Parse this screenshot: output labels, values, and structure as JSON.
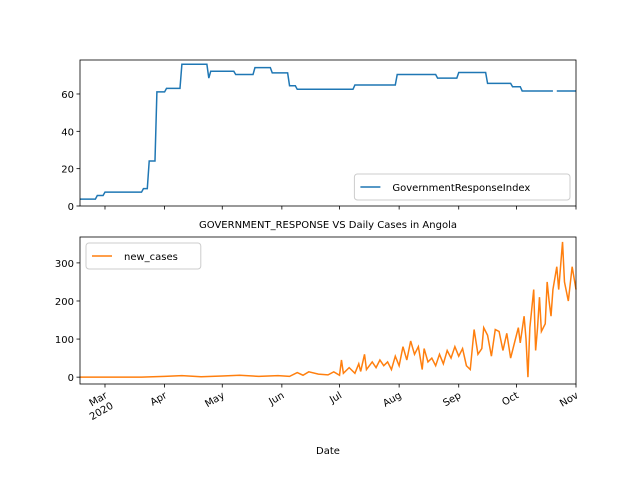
{
  "chart_data": [
    {
      "type": "line",
      "xlim": [
        "2020-02-17",
        "2020-11-01"
      ],
      "ylim": [
        0,
        78.2
      ],
      "yticks": [
        0,
        20,
        40,
        60
      ],
      "legend": "lower right",
      "xticks": [
        "2020-03-01",
        "2020-04-01",
        "2020-05-01",
        "2020-06-01",
        "2020-07-01",
        "2020-08-01",
        "2020-09-01",
        "2020-10-01",
        "2020-11-01"
      ],
      "x": [
        "2020-02-17",
        "2020-02-25",
        "2020-02-26",
        "2020-02-29",
        "2020-03-01",
        "2020-03-20",
        "2020-03-21",
        "2020-03-23",
        "2020-03-24",
        "2020-03-27",
        "2020-03-28",
        "2020-04-01",
        "2020-04-02",
        "2020-04-09",
        "2020-04-10",
        "2020-04-23",
        "2020-04-24",
        "2020-04-25",
        "2020-05-07",
        "2020-05-08",
        "2020-05-17",
        "2020-05-18",
        "2020-05-26",
        "2020-05-27",
        "2020-06-04",
        "2020-06-05",
        "2020-06-08",
        "2020-06-09",
        "2020-07-08",
        "2020-07-09",
        "2020-07-30",
        "2020-07-31",
        "2020-08-20",
        "2020-08-21",
        "2020-08-31",
        "2020-09-01",
        "2020-09-15",
        "2020-09-16",
        "2020-09-28",
        "2020-09-29",
        "2020-10-03",
        "2020-10-04",
        "2020-10-20",
        "2020-10-21",
        "2020-10-22",
        "2020-11-01"
      ],
      "series": [
        {
          "name": "GovernmentResponseIndex",
          "color": "#1f77b4",
          "values": [
            3.7,
            3.7,
            5.6,
            5.6,
            7.4,
            7.4,
            9.3,
            9.3,
            24.1,
            24.1,
            61.1,
            61.1,
            63.0,
            63.0,
            75.9,
            75.9,
            68.5,
            72.2,
            72.2,
            70.4,
            70.4,
            74.1,
            74.1,
            71.3,
            71.3,
            64.4,
            64.4,
            62.5,
            62.5,
            64.8,
            64.8,
            70.4,
            70.4,
            68.5,
            68.5,
            71.5,
            71.5,
            65.7,
            65.7,
            63.9,
            63.9,
            61.6,
            61.6,
            null,
            61.6,
            61.6
          ]
        }
      ]
    },
    {
      "type": "line",
      "title": "GOVERNMENT_RESPONSE VS Daily Cases in Angola",
      "xlabel": "Date",
      "xlim": [
        "2020-02-17",
        "2020-11-01"
      ],
      "ylim": [
        -18,
        368
      ],
      "yticks": [
        0,
        100,
        200,
        300
      ],
      "legend": "upper left",
      "xticks": [
        {
          "value": "2020-03-01",
          "label": "Mar\n2020"
        },
        {
          "value": "2020-04-01",
          "label": "Apr"
        },
        {
          "value": "2020-05-01",
          "label": "May"
        },
        {
          "value": "2020-06-01",
          "label": "Jun"
        },
        {
          "value": "2020-07-01",
          "label": "Jul"
        },
        {
          "value": "2020-08-01",
          "label": "Aug"
        },
        {
          "value": "2020-09-01",
          "label": "Sep"
        },
        {
          "value": "2020-10-01",
          "label": "Oct"
        },
        {
          "value": "2020-11-01",
          "label": "Nov"
        }
      ],
      "x": [
        "2020-02-17",
        "2020-03-20",
        "2020-04-01",
        "2020-04-10",
        "2020-04-20",
        "2020-05-01",
        "2020-05-10",
        "2020-05-20",
        "2020-05-30",
        "2020-06-05",
        "2020-06-09",
        "2020-06-12",
        "2020-06-15",
        "2020-06-20",
        "2020-06-25",
        "2020-06-28",
        "2020-07-01",
        "2020-07-02",
        "2020-07-03",
        "2020-07-06",
        "2020-07-09",
        "2020-07-11",
        "2020-07-12",
        "2020-07-14",
        "2020-07-15",
        "2020-07-18",
        "2020-07-20",
        "2020-07-22",
        "2020-07-24",
        "2020-07-26",
        "2020-07-28",
        "2020-07-30",
        "2020-08-01",
        "2020-08-03",
        "2020-08-05",
        "2020-08-07",
        "2020-08-09",
        "2020-08-11",
        "2020-08-13",
        "2020-08-14",
        "2020-08-16",
        "2020-08-18",
        "2020-08-20",
        "2020-08-22",
        "2020-08-24",
        "2020-08-26",
        "2020-08-28",
        "2020-08-30",
        "2020-09-01",
        "2020-09-03",
        "2020-09-05",
        "2020-09-07",
        "2020-09-09",
        "2020-09-11",
        "2020-09-13",
        "2020-09-14",
        "2020-09-16",
        "2020-09-18",
        "2020-09-20",
        "2020-09-22",
        "2020-09-24",
        "2020-09-26",
        "2020-09-28",
        "2020-09-30",
        "2020-10-02",
        "2020-10-03",
        "2020-10-05",
        "2020-10-06",
        "2020-10-07",
        "2020-10-08",
        "2020-10-10",
        "2020-10-11",
        "2020-10-12",
        "2020-10-13",
        "2020-10-14",
        "2020-10-16",
        "2020-10-17",
        "2020-10-18",
        "2020-10-19",
        "2020-10-20",
        "2020-10-22",
        "2020-10-23",
        "2020-10-25",
        "2020-10-26",
        "2020-10-28",
        "2020-10-30",
        "2020-11-01"
      ],
      "series": [
        {
          "name": "new_cases",
          "color": "#ff7f0e",
          "values": [
            0,
            0,
            2,
            4,
            1,
            3,
            5,
            2,
            4,
            2,
            12,
            5,
            14,
            8,
            6,
            14,
            5,
            45,
            10,
            25,
            10,
            35,
            15,
            60,
            20,
            40,
            25,
            45,
            30,
            40,
            20,
            55,
            30,
            80,
            45,
            95,
            60,
            80,
            20,
            75,
            40,
            50,
            30,
            60,
            35,
            70,
            50,
            80,
            55,
            75,
            30,
            20,
            125,
            60,
            75,
            130,
            110,
            55,
            125,
            120,
            70,
            115,
            50,
            90,
            130,
            90,
            160,
            100,
            0,
            130,
            230,
            70,
            130,
            210,
            120,
            140,
            250,
            200,
            160,
            230,
            290,
            230,
            355,
            250,
            200,
            290,
            230
          ]
        }
      ]
    }
  ]
}
